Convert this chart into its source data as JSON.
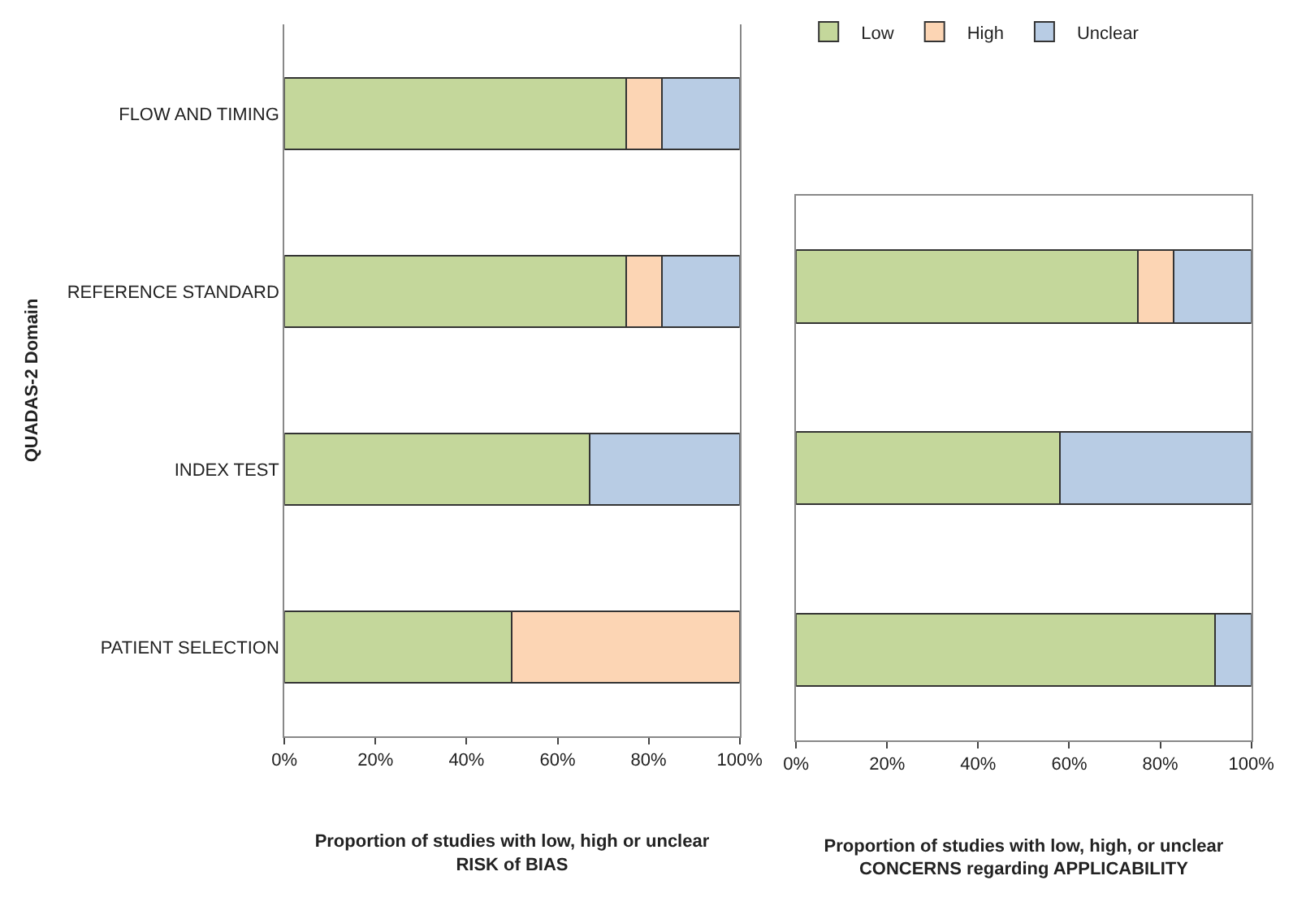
{
  "chart_data": [
    {
      "type": "bar",
      "orientation": "horizontal",
      "stacked": true,
      "categories": [
        "FLOW AND TIMING",
        "REFERENCE STANDARD",
        "INDEX TEST",
        "PATIENT SELECTION"
      ],
      "xlabel": "Proportion of studies with low, high or unclear\nRISK of BIAS",
      "ylabel": "QUADAS-2 Domain",
      "xlim": [
        0,
        100
      ],
      "xticks": [
        {
          "value": 0,
          "label": "0%"
        },
        {
          "value": 20,
          "label": "20%"
        },
        {
          "value": 40,
          "label": "40%"
        },
        {
          "value": 60,
          "label": "60%"
        },
        {
          "value": 80,
          "label": "80%"
        },
        {
          "value": 100,
          "label": "100%"
        }
      ],
      "legend": "top right",
      "series": [
        {
          "name": "Low",
          "color": "#c4d79b",
          "values": [
            75,
            75,
            67,
            50
          ]
        },
        {
          "name": "High",
          "color": "#fcd5b4",
          "values": [
            8,
            8,
            null,
            50
          ]
        },
        {
          "name": "Unclear",
          "color": "#b8cce4",
          "values": [
            17,
            17,
            33,
            null
          ]
        }
      ]
    },
    {
      "type": "bar",
      "orientation": "horizontal",
      "stacked": true,
      "categories": [
        null,
        null,
        null
      ],
      "tick_labels": "x",
      "xlabel": "Proportion of studies with low, high, or unclear\nCONCERNS regarding APPLICABILITY",
      "xlim": [
        0,
        100
      ],
      "xticks": [
        {
          "value": 0,
          "label": "0%"
        },
        {
          "value": 20,
          "label": "20%"
        },
        {
          "value": 40,
          "label": "40%"
        },
        {
          "value": 60,
          "label": "60%"
        },
        {
          "value": 80,
          "label": "80%"
        },
        {
          "value": 100,
          "label": "100%"
        }
      ],
      "legend": false,
      "series": [
        {
          "color": "#c4d79b",
          "values": [
            75,
            58,
            92
          ]
        },
        {
          "color": "#fcd5b4",
          "values": [
            8,
            null,
            null
          ]
        },
        {
          "color": "#b8cce4",
          "values": [
            17,
            42,
            8
          ]
        }
      ]
    }
  ]
}
